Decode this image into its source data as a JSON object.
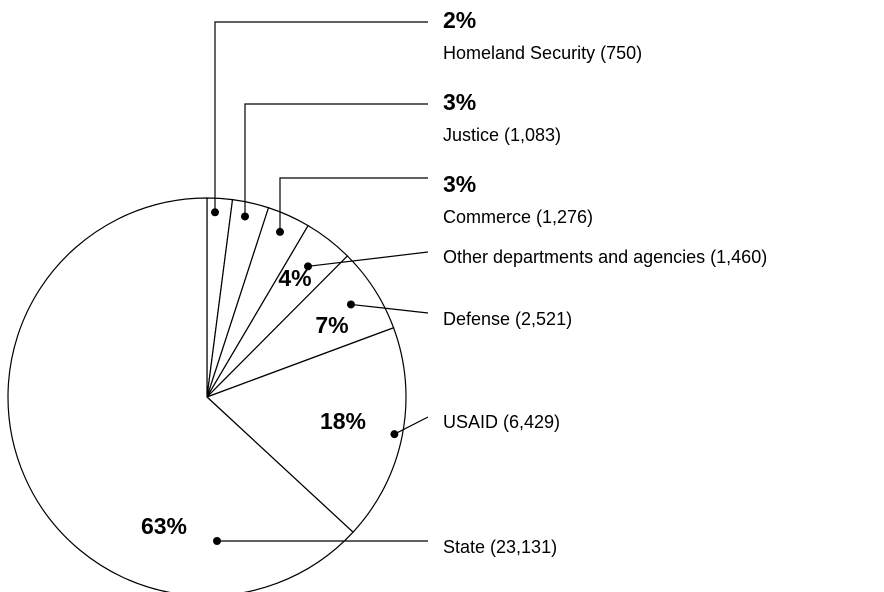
{
  "chart_data": {
    "type": "pie",
    "colors": {
      "fill": "#ffffff",
      "stroke": "#000000",
      "text": "#000000"
    },
    "slices": [
      {
        "label": "Homeland Security (750)",
        "value": 750,
        "percent_label": "2%"
      },
      {
        "label": "Justice (1,083)",
        "value": 1083,
        "percent_label": "3%"
      },
      {
        "label": "Commerce (1,276)",
        "value": 1276,
        "percent_label": "3%"
      },
      {
        "label": "Other departments and agencies (1,460)",
        "value": 1460,
        "percent_label": "4%"
      },
      {
        "label": "Defense (2,521)",
        "value": 2521,
        "percent_label": "7%"
      },
      {
        "label": "USAID (6,429)",
        "value": 6429,
        "percent_label": "18%"
      },
      {
        "label": "State (23,131)",
        "value": 23131,
        "percent_label": "63%"
      }
    ]
  }
}
